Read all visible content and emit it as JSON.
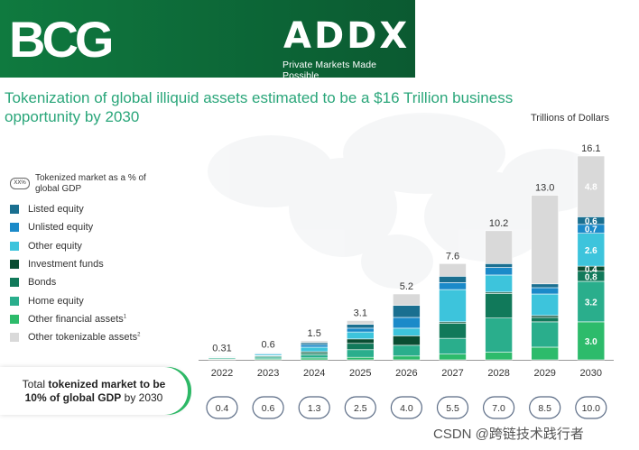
{
  "header": {
    "bcg_logo_text": "BCG",
    "addx_logo_text": "ADDX",
    "addx_tagline": "Private Markets Made Possible"
  },
  "title": "Tokenization of global illiquid assets estimated to be a $16 Trillion business opportunity by 2030",
  "summary": {
    "line1_pre": "Total ",
    "line1_bold": "tokenized market to be",
    "line2_bold": "10% of global GDP",
    "line2_post": " by 2030"
  },
  "watermark": "CSDN @跨链技术践行者",
  "colors": {
    "banner": "#0d6b39",
    "title": "#2aa67a",
    "accent_green": "#2db866"
  },
  "chart_data": {
    "type": "bar",
    "stacked": true,
    "unit_label": "Trillions of Dollars",
    "categories": [
      "2022",
      "2023",
      "2024",
      "2025",
      "2026",
      "2027",
      "2028",
      "2029",
      "2030"
    ],
    "totals": [
      "0.31",
      "0.6",
      "1.5",
      "3.1",
      "5.2",
      "7.6",
      "10.2",
      "13.0",
      "16.1"
    ],
    "gdp_pct": [
      "0.4",
      "0.6",
      "1.3",
      "2.5",
      "4.0",
      "5.5",
      "7.0",
      "8.5",
      "10.0"
    ],
    "legend_header": "Tokenized market as a % of global GDP",
    "legend_badge": "XX%",
    "series": [
      {
        "name": "Other financial assets",
        "sup": "1",
        "color": "#2dbb6b",
        "values": [
          0.05,
          0.08,
          0.15,
          0.2,
          0.3,
          0.45,
          0.6,
          1.0,
          3.0
        ]
      },
      {
        "name": "Home equity",
        "sup": "",
        "color": "#2aae8c",
        "values": [
          0.08,
          0.14,
          0.25,
          0.6,
          0.85,
          1.25,
          2.7,
          2.0,
          3.2
        ]
      },
      {
        "name": "Bonds",
        "sup": "",
        "color": "#11795a",
        "values": [
          0.04,
          0.08,
          0.15,
          0.5,
          0.0,
          1.2,
          1.95,
          0.35,
          0.8
        ]
      },
      {
        "name": "Investment funds",
        "sup": "",
        "color": "#0a4d32",
        "values": [
          0.03,
          0.05,
          0.1,
          0.35,
          0.75,
          0.1,
          0.1,
          0.15,
          0.4
        ]
      },
      {
        "name": "Other equity",
        "sup": "",
        "color": "#3dc4dc",
        "values": [
          0.05,
          0.1,
          0.35,
          0.55,
          0.6,
          2.55,
          1.35,
          1.7,
          2.6
        ]
      },
      {
        "name": "Unlisted equity",
        "sup": "",
        "color": "#1b8ac9",
        "values": [
          0.03,
          0.06,
          0.2,
          0.3,
          0.85,
          0.55,
          0.6,
          0.5,
          0.7
        ]
      },
      {
        "name": "Listed equity",
        "sup": "",
        "color": "#1a6f90",
        "values": [
          0.02,
          0.05,
          0.15,
          0.3,
          0.95,
          0.5,
          0.3,
          0.3,
          0.6
        ]
      },
      {
        "name": "Other tokenizable assets",
        "sup": "2",
        "color": "#d9d9d9",
        "values": [
          0.01,
          0.04,
          0.15,
          0.3,
          0.9,
          1.0,
          2.6,
          7.0,
          4.8
        ]
      }
    ],
    "segment_labels": [
      {
        "category": "2030",
        "series": "Other tokenizable assets",
        "text": "4.8"
      },
      {
        "category": "2030",
        "series": "Listed equity",
        "text": "0.6"
      },
      {
        "category": "2030",
        "series": "Unlisted equity",
        "text": "0.7"
      },
      {
        "category": "2030",
        "series": "Other equity",
        "text": "2.6"
      },
      {
        "category": "2030",
        "series": "Investment funds",
        "text": "0.4"
      },
      {
        "category": "2030",
        "series": "Bonds",
        "text": "0.8"
      },
      {
        "category": "2030",
        "series": "Home equity",
        "text": "3.2"
      },
      {
        "category": "2030",
        "series": "Other financial assets",
        "text": "3.0"
      }
    ],
    "ylim": [
      0,
      16.1
    ],
    "grid": false,
    "legend_position": "left"
  }
}
